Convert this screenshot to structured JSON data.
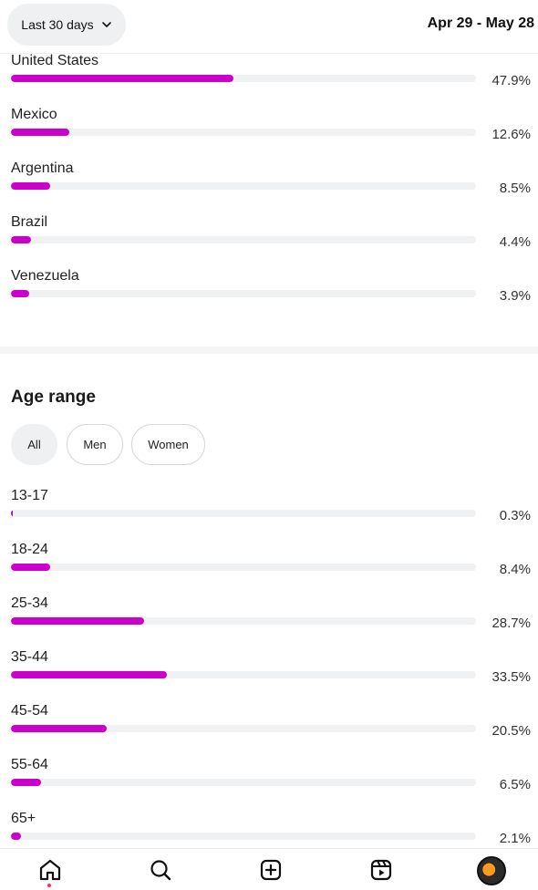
{
  "header": {
    "range_label": "Last 30 days",
    "date_range": "Apr 29 - May 28"
  },
  "top_countries": [
    {
      "name": "United States",
      "percent_label": "47.9%",
      "value": 47.9
    },
    {
      "name": "Mexico",
      "percent_label": "12.6%",
      "value": 12.6
    },
    {
      "name": "Argentina",
      "percent_label": "8.5%",
      "value": 8.5
    },
    {
      "name": "Brazil",
      "percent_label": "4.4%",
      "value": 4.4
    },
    {
      "name": "Venezuela",
      "percent_label": "3.9%",
      "value": 3.9
    }
  ],
  "age_range": {
    "title": "Age range",
    "filters": [
      {
        "label": "All",
        "active": true
      },
      {
        "label": "Men",
        "active": false
      },
      {
        "label": "Women",
        "active": false
      }
    ],
    "rows": [
      {
        "name": "13-17",
        "percent_label": "0.3%",
        "value": 0.3
      },
      {
        "name": "18-24",
        "percent_label": "8.4%",
        "value": 8.4
      },
      {
        "name": "25-34",
        "percent_label": "28.7%",
        "value": 28.7
      },
      {
        "name": "35-44",
        "percent_label": "33.5%",
        "value": 33.5
      },
      {
        "name": "45-54",
        "percent_label": "20.5%",
        "value": 20.5
      },
      {
        "name": "55-64",
        "percent_label": "6.5%",
        "value": 6.5
      },
      {
        "name": "65+",
        "percent_label": "2.1%",
        "value": 2.1
      }
    ]
  },
  "colors": {
    "bar_fill": "#cc00cc",
    "bar_track": "#f0f1f3",
    "pill_bg": "#eff0f2"
  },
  "icons": {
    "range_chevron": "chevron-down-icon",
    "nav": [
      "home-icon",
      "search-icon",
      "create-icon",
      "reels-icon",
      "profile-avatar"
    ]
  }
}
